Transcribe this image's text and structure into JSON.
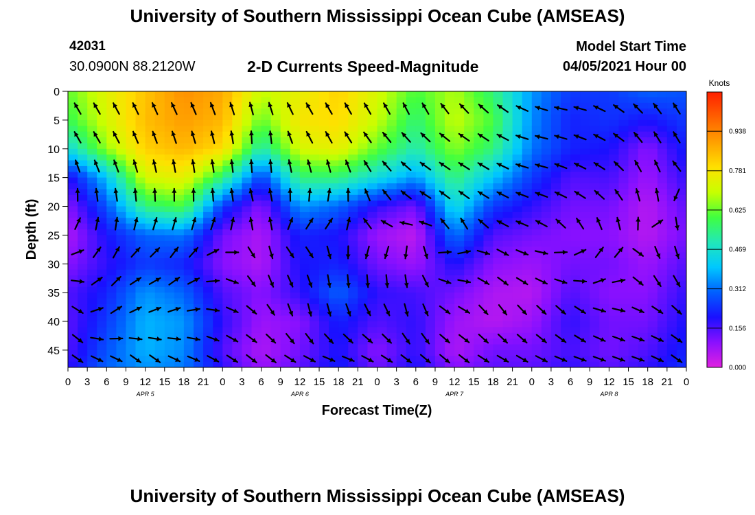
{
  "header": {
    "title_top": "University of Southern Mississippi Ocean Cube (AMSEAS)",
    "title_bottom": "University of Southern Mississippi Ocean Cube (AMSEAS)",
    "station_id": "42031",
    "station_coords": "30.0900N  88.2120W",
    "product_title": "2-D Currents Speed-Magnitude",
    "model_start_label": "Model Start Time",
    "model_start_value": "04/05/2021 Hour 00"
  },
  "chart_data": {
    "type": "heatmap",
    "title": "2-D Currents Speed-Magnitude",
    "xlabel": "Forecast Time(Z)",
    "ylabel": "Depth (ft)",
    "xlim": [
      0,
      96
    ],
    "ylim": [
      48,
      0
    ],
    "x_ticks": [
      0,
      3,
      6,
      9,
      12,
      15,
      18,
      21,
      24,
      27,
      30,
      33,
      36,
      39,
      42,
      45,
      48,
      51,
      54,
      57,
      60,
      63,
      66,
      69,
      72,
      75,
      78,
      81,
      84,
      87,
      90,
      93,
      96
    ],
    "x_tick_labels": [
      "0",
      "3",
      "6",
      "9",
      "12",
      "15",
      "18",
      "21",
      "0",
      "3",
      "6",
      "9",
      "12",
      "15",
      "18",
      "21",
      "0",
      "3",
      "6",
      "9",
      "12",
      "15",
      "18",
      "21",
      "0",
      "3",
      "6",
      "9",
      "12",
      "15",
      "18",
      "21",
      "0"
    ],
    "y_ticks": [
      0,
      5,
      10,
      15,
      20,
      25,
      30,
      35,
      40,
      45
    ],
    "y_tick_labels": [
      "0",
      "5",
      "10",
      "15",
      "20",
      "25",
      "30",
      "35",
      "40",
      "45"
    ],
    "date_labels": [
      {
        "text": "APR  5",
        "x": 12
      },
      {
        "text": "APR  6",
        "x": 36
      },
      {
        "text": "APR  7",
        "x": 60
      },
      {
        "text": "APR  8",
        "x": 84
      }
    ],
    "colorbar": {
      "label": "Knots",
      "ticks": [
        0.0,
        0.156,
        0.312,
        0.469,
        0.625,
        0.781,
        0.938
      ],
      "tick_labels": [
        "0.000",
        "0.156",
        "0.312",
        "0.469",
        "0.625",
        "0.781",
        "0.938"
      ],
      "range": [
        0,
        1.094
      ],
      "colors": [
        "#e020e0",
        "#8a10ff",
        "#1a10ff",
        "#0060ff",
        "#00c8ff",
        "#22e8b8",
        "#40ff40",
        "#c8ff00",
        "#ffe000",
        "#ffa000",
        "#ff6000",
        "#ff2000"
      ]
    },
    "speed_grid": {
      "times": [
        0,
        6,
        12,
        18,
        24,
        30,
        36,
        42,
        48,
        54,
        60,
        66,
        72,
        78,
        84,
        90,
        96
      ],
      "depths": [
        0,
        5,
        10,
        15,
        20,
        25,
        30,
        35,
        40,
        45,
        48
      ],
      "values": [
        [
          0.62,
          0.74,
          0.84,
          0.92,
          0.88,
          0.7,
          0.75,
          0.82,
          0.72,
          0.6,
          0.68,
          0.55,
          0.35,
          0.25,
          0.25,
          0.3,
          0.28
        ],
        [
          0.58,
          0.72,
          0.85,
          0.9,
          0.86,
          0.62,
          0.78,
          0.8,
          0.7,
          0.55,
          0.7,
          0.6,
          0.34,
          0.22,
          0.24,
          0.2,
          0.25
        ],
        [
          0.45,
          0.66,
          0.82,
          0.86,
          0.8,
          0.5,
          0.72,
          0.75,
          0.62,
          0.5,
          0.65,
          0.55,
          0.32,
          0.22,
          0.2,
          0.1,
          0.22
        ],
        [
          0.18,
          0.4,
          0.72,
          0.75,
          0.55,
          0.25,
          0.55,
          0.55,
          0.45,
          0.35,
          0.55,
          0.4,
          0.25,
          0.15,
          0.16,
          0.08,
          0.18
        ],
        [
          0.1,
          0.28,
          0.55,
          0.6,
          0.25,
          0.1,
          0.35,
          0.3,
          0.18,
          0.12,
          0.45,
          0.25,
          0.18,
          0.12,
          0.12,
          0.05,
          0.14
        ],
        [
          0.06,
          0.2,
          0.3,
          0.32,
          0.12,
          0.06,
          0.22,
          0.2,
          0.08,
          0.04,
          0.32,
          0.15,
          0.12,
          0.1,
          0.1,
          0.05,
          0.12
        ],
        [
          0.1,
          0.18,
          0.25,
          0.22,
          0.1,
          0.06,
          0.2,
          0.22,
          0.12,
          0.08,
          0.2,
          0.1,
          0.08,
          0.12,
          0.12,
          0.08,
          0.15
        ],
        [
          0.15,
          0.22,
          0.35,
          0.3,
          0.15,
          0.1,
          0.18,
          0.3,
          0.18,
          0.16,
          0.12,
          0.06,
          0.05,
          0.15,
          0.1,
          0.1,
          0.18
        ],
        [
          0.14,
          0.25,
          0.38,
          0.35,
          0.18,
          0.08,
          0.1,
          0.22,
          0.15,
          0.18,
          0.08,
          0.05,
          0.08,
          0.18,
          0.12,
          0.12,
          0.2
        ],
        [
          0.15,
          0.28,
          0.38,
          0.34,
          0.15,
          0.06,
          0.12,
          0.2,
          0.1,
          0.18,
          0.06,
          0.12,
          0.12,
          0.16,
          0.12,
          0.15,
          0.22
        ],
        [
          0.18,
          0.3,
          0.35,
          0.32,
          0.18,
          0.08,
          0.14,
          0.22,
          0.12,
          0.2,
          0.1,
          0.14,
          0.14,
          0.18,
          0.14,
          0.18,
          0.24
        ]
      ]
    },
    "arrow_grid": {
      "times": [
        0,
        6,
        12,
        18,
        24,
        30,
        36,
        42,
        48,
        54,
        60,
        66,
        72,
        78,
        84,
        90,
        96
      ],
      "depths": [
        2.5,
        10,
        20,
        30,
        40,
        46
      ],
      "direction_deg": [
        [
          330,
          330,
          335,
          335,
          340,
          345,
          330,
          330,
          330,
          335,
          320,
          310,
          290,
          280,
          300,
          320,
          330
        ],
        [
          330,
          330,
          340,
          345,
          350,
          5,
          335,
          330,
          320,
          310,
          300,
          300,
          280,
          290,
          300,
          330,
          330
        ],
        [
          10,
          355,
          0,
          5,
          355,
          340,
          10,
          20,
          330,
          300,
          310,
          300,
          290,
          300,
          320,
          0,
          180
        ],
        [
          100,
          30,
          60,
          40,
          90,
          170,
          150,
          180,
          190,
          170,
          80,
          120,
          110,
          90,
          40,
          160,
          160
        ],
        [
          150,
          60,
          70,
          80,
          110,
          130,
          170,
          160,
          140,
          170,
          120,
          150,
          140,
          140,
          110,
          110,
          130
        ],
        [
          130,
          110,
          130,
          110,
          120,
          130,
          120,
          110,
          120,
          130,
          130,
          120,
          120,
          110,
          110,
          110,
          130
        ]
      ]
    }
  }
}
